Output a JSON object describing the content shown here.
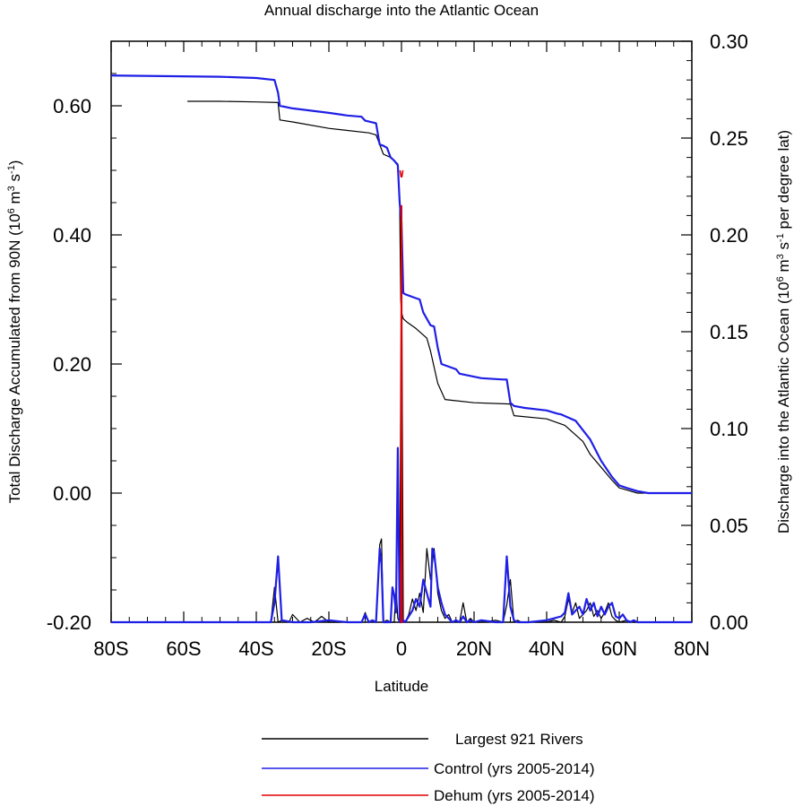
{
  "chart_data": {
    "type": "line",
    "title": "Annual discharge into the Atlantic Ocean",
    "xlabel": "Latitude",
    "ylabel_left": "Total Discharge Accumulated from 90N (10^6 m^3 s^-1)",
    "ylabel_right": "Discharge into the Atlantic Ocean (10^6 m^3 s^-1 per degree lat)",
    "xlim": [
      -80,
      80
    ],
    "ylim_left": [
      -0.2,
      0.7
    ],
    "ylim_right": [
      0.0,
      0.3
    ],
    "x_ticks": [
      {
        "value": -80,
        "label": "80S"
      },
      {
        "value": -60,
        "label": "60S"
      },
      {
        "value": -40,
        "label": "40S"
      },
      {
        "value": -20,
        "label": "20S"
      },
      {
        "value": 0,
        "label": "0"
      },
      {
        "value": 20,
        "label": "20N"
      },
      {
        "value": 40,
        "label": "40N"
      },
      {
        "value": 60,
        "label": "60N"
      },
      {
        "value": 80,
        "label": "80N"
      }
    ],
    "y_left_ticks": [
      {
        "value": -0.2,
        "label": "-0.20"
      },
      {
        "value": 0.0,
        "label": "0.00"
      },
      {
        "value": 0.2,
        "label": "0.20"
      },
      {
        "value": 0.4,
        "label": "0.40"
      },
      {
        "value": 0.6,
        "label": "0.60"
      }
    ],
    "y_right_ticks": [
      {
        "value": 0.0,
        "label": "0.00"
      },
      {
        "value": 0.05,
        "label": "0.05"
      },
      {
        "value": 0.1,
        "label": "0.10"
      },
      {
        "value": 0.15,
        "label": "0.15"
      },
      {
        "value": 0.2,
        "label": "0.20"
      },
      {
        "value": 0.25,
        "label": "0.25"
      },
      {
        "value": 0.3,
        "label": "0.30"
      }
    ],
    "legend_position": "bottom",
    "series": [
      {
        "name": "Largest 921 Rivers",
        "color": "#000000",
        "accumulated": {
          "x": [
            -59,
            -50,
            -40,
            -34,
            -33.5,
            -30,
            -20,
            -9,
            -7,
            -5,
            -3,
            -1,
            -0.5,
            -0.2,
            0,
            0.5,
            1.5,
            4,
            7,
            8,
            10,
            12,
            20,
            30,
            31,
            40,
            45,
            48,
            50,
            52,
            55,
            58,
            60,
            62,
            65,
            70,
            80
          ],
          "y": [
            0.607,
            0.607,
            0.606,
            0.605,
            0.578,
            0.575,
            0.565,
            0.558,
            0.555,
            0.525,
            0.52,
            0.51,
            0.45,
            0.3,
            0.28,
            0.27,
            0.265,
            0.255,
            0.24,
            0.22,
            0.17,
            0.145,
            0.14,
            0.138,
            0.12,
            0.115,
            0.105,
            0.09,
            0.08,
            0.06,
            0.04,
            0.02,
            0.008,
            0.005,
            0.0,
            0.0,
            0.0
          ]
        },
        "per_degree": {
          "x": [
            -80,
            -40,
            -36,
            -35,
            -34,
            -33,
            -31,
            -30,
            -28,
            -26,
            -24,
            -22,
            -20,
            -15,
            -11,
            -10,
            -9,
            -8,
            -7,
            -6,
            -5.5,
            -5,
            -4,
            -3,
            -2,
            -1.5,
            -1,
            -0.5,
            0,
            0.5,
            1,
            2,
            3,
            4,
            5,
            6,
            7,
            8,
            9,
            10,
            11,
            12,
            13,
            14,
            15,
            16,
            17,
            18,
            19,
            20,
            22,
            26,
            28,
            29,
            30,
            31,
            32,
            33,
            35,
            40,
            42,
            44,
            45,
            46,
            47,
            48,
            49,
            50,
            51,
            52,
            53,
            54,
            55,
            56,
            57,
            58,
            59,
            60,
            62,
            64,
            65,
            80
          ],
          "y": [
            0.0,
            0.0,
            0.0,
            0.018,
            0.0,
            0.001,
            0.0,
            0.004,
            0.0,
            0.002,
            0.0,
            0.003,
            0.0,
            0.0,
            0.0,
            0.005,
            0.0,
            0.001,
            0.0,
            0.04,
            0.043,
            0.0,
            0.001,
            0.0,
            0.0,
            0.018,
            0.002,
            0.0,
            0.2,
            0.001,
            0.0,
            0.004,
            0.012,
            0.006,
            0.015,
            0.005,
            0.038,
            0.022,
            0.038,
            0.015,
            0.006,
            0.002,
            0.004,
            0.0,
            0.001,
            0.0,
            0.01,
            0.0,
            0.002,
            0.0,
            0.0,
            0.001,
            0.0,
            0.009,
            0.022,
            0.0,
            0.001,
            0.0,
            0.0,
            0.0,
            0.001,
            0.0,
            0.003,
            0.012,
            0.005,
            0.01,
            0.002,
            0.004,
            0.006,
            0.01,
            0.003,
            0.006,
            0.002,
            0.005,
            0.01,
            0.003,
            0.001,
            0.0,
            0.001,
            0.0,
            0.0,
            0.0
          ]
        }
      },
      {
        "name": "Control (yrs 2005-2014)",
        "color": "#1f1fe6",
        "accumulated": {
          "x": [
            -80,
            -50,
            -40,
            -35,
            -34,
            -33.5,
            -30,
            -20,
            -15,
            -11,
            -10,
            -7,
            -6,
            -5,
            -4,
            -3,
            -2,
            -1,
            -0.5,
            0,
            0.5,
            1,
            4,
            5,
            6,
            8,
            9,
            10,
            11,
            15,
            16,
            22,
            28,
            29,
            30,
            31,
            34,
            40,
            43,
            44,
            48,
            52,
            55,
            58,
            60,
            62,
            65,
            68,
            70,
            80
          ],
          "y": [
            0.647,
            0.645,
            0.643,
            0.64,
            0.62,
            0.6,
            0.596,
            0.589,
            0.585,
            0.583,
            0.577,
            0.573,
            0.54,
            0.538,
            0.535,
            0.52,
            0.515,
            0.508,
            0.45,
            0.42,
            0.31,
            0.308,
            0.302,
            0.3,
            0.28,
            0.26,
            0.258,
            0.225,
            0.2,
            0.192,
            0.185,
            0.178,
            0.176,
            0.176,
            0.14,
            0.135,
            0.132,
            0.128,
            0.123,
            0.122,
            0.112,
            0.083,
            0.05,
            0.025,
            0.012,
            0.008,
            0.003,
            0.0,
            0.0,
            0.0
          ]
        },
        "per_degree": {
          "x": [
            -80,
            -36,
            -35,
            -34,
            -33,
            -30,
            -25,
            -20,
            -15,
            -11,
            -10,
            -9,
            -8,
            -7,
            -6,
            -5.5,
            -5,
            -4,
            -3,
            -2.5,
            -2,
            -1.5,
            -1,
            -0.5,
            0,
            0.5,
            1,
            2,
            3,
            4,
            5,
            6,
            7,
            8,
            8.5,
            9,
            10,
            11,
            12,
            13,
            14,
            15,
            16,
            17,
            18,
            19,
            20,
            22,
            26,
            28,
            29,
            30,
            31,
            32,
            35,
            40,
            42,
            44,
            45,
            46,
            47,
            48,
            49,
            50,
            51,
            52,
            53,
            54,
            55,
            56,
            57,
            58,
            59,
            60,
            61,
            62,
            63,
            64,
            65,
            80
          ],
          "y": [
            0.0,
            0.0,
            0.01,
            0.034,
            0.001,
            0.0,
            0.0,
            0.001,
            0.0,
            0.0,
            0.004,
            0.0,
            0.001,
            0.0,
            0.038,
            0.03,
            0.0,
            0.0,
            0.0,
            0.018,
            0.014,
            0.005,
            0.09,
            0.0,
            0.0,
            0.001,
            0.0,
            0.003,
            0.006,
            0.012,
            0.008,
            0.022,
            0.015,
            0.008,
            0.038,
            0.036,
            0.018,
            0.01,
            0.004,
            0.002,
            0.0,
            0.001,
            0.0,
            0.003,
            0.0,
            0.001,
            0.0,
            0.001,
            0.0,
            0.0,
            0.034,
            0.008,
            0.001,
            0.0,
            0.0,
            0.001,
            0.002,
            0.003,
            0.005,
            0.015,
            0.004,
            0.006,
            0.008,
            0.004,
            0.012,
            0.006,
            0.01,
            0.003,
            0.008,
            0.004,
            0.008,
            0.01,
            0.003,
            0.002,
            0.004,
            0.001,
            0.0,
            0.001,
            0.0,
            0.0
          ]
        }
      },
      {
        "name": "Dehum (yrs 2005-2014)",
        "color": "#e00000",
        "accumulated": {
          "x": [
            -0.4,
            -0.1,
            0.1,
            0.4
          ],
          "y": [
            0.5,
            0.49,
            0.49,
            0.5
          ]
        },
        "per_degree": {
          "x": [
            -0.4,
            -0.15,
            -0.05,
            0.05,
            0.15,
            0.4
          ],
          "y": [
            0.0,
            0.0,
            0.215,
            0.215,
            0.0,
            0.0
          ]
        }
      }
    ]
  }
}
